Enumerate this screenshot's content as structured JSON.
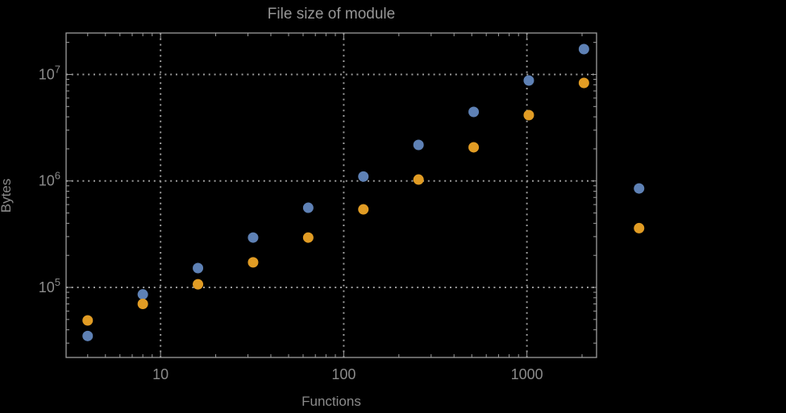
{
  "colors": {
    "background": "#000000",
    "frame": "#9e9e9e",
    "grid": "#9a9a9a",
    "text": "#8b8b8b",
    "title_text": "#969696"
  },
  "chart_data": {
    "type": "scatter",
    "title": "File size of module",
    "xlabel": "Functions",
    "ylabel": "Bytes",
    "xscale": "log",
    "yscale": "log",
    "grid": "dotted",
    "legend": "none",
    "clip_points": false,
    "xlim": [
      3.05,
      2400
    ],
    "ylim": [
      22000,
      24500000
    ],
    "x_ticks": [
      {
        "value": 10,
        "label": "10"
      },
      {
        "value": 100,
        "label": "100"
      },
      {
        "value": 1000,
        "label": "1000"
      }
    ],
    "y_ticks": [
      {
        "value": 100000,
        "base": "10",
        "exp": "5"
      },
      {
        "value": 1000000,
        "base": "10",
        "exp": "6"
      },
      {
        "value": 10000000,
        "base": "10",
        "exp": "7"
      }
    ],
    "x": [
      4,
      8,
      16,
      32,
      64,
      128,
      256,
      512,
      1024,
      2048,
      4096
    ],
    "series": [
      {
        "name": "blue-series",
        "color": "#5E81B5",
        "values": [
          35000,
          86000,
          152000,
          294000,
          560000,
          1100000,
          2180000,
          4450000,
          8770000,
          17300000,
          850000
        ]
      },
      {
        "name": "orange-series",
        "color": "#E19C24",
        "values": [
          49000,
          70000,
          107000,
          172000,
          294000,
          541000,
          1030000,
          2070000,
          4150000,
          8330000,
          360000
        ]
      }
    ]
  }
}
